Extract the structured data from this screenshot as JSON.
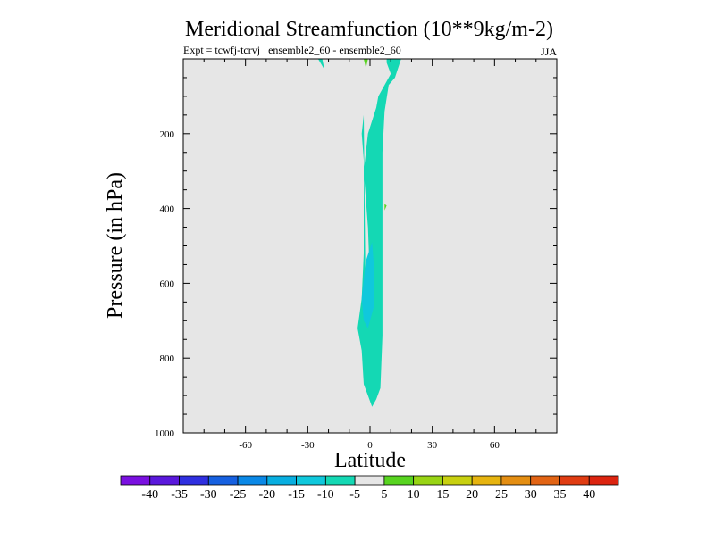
{
  "chart_data": {
    "type": "contour",
    "title": "Meridional Streamfunction (10**9kg/m-2)",
    "subtitle_left": "Expt = tcwfj-tcrvj   ensemble2_60 - ensemble2_60",
    "subtitle_right": "JJA",
    "xlabel": "Latitude",
    "ylabel": "Pressure (in hPa)",
    "xlim": [
      -90,
      90
    ],
    "ylim": [
      1000,
      0
    ],
    "x_ticks": [
      -60,
      -30,
      0,
      30,
      60
    ],
    "x_tick_labels": [
      "-60",
      "-30",
      "0",
      "30",
      "60"
    ],
    "y_ticks": [
      200,
      400,
      600,
      800,
      1000
    ],
    "y_tick_labels": [
      "200",
      "400",
      "600",
      "800",
      "1000"
    ],
    "background_color": "#e6e6e6",
    "colorbar": {
      "labels": [
        "-40",
        "-35",
        "-30",
        "-25",
        "-20",
        "-15",
        "-10",
        "-5",
        "5",
        "10",
        "15",
        "20",
        "25",
        "30",
        "35",
        "40"
      ],
      "colors": [
        "#7a10e0",
        "#5a18dc",
        "#2f2fe0",
        "#1660e0",
        "#0a88e6",
        "#08aee0",
        "#10c8dc",
        "#14d8b4",
        "#e6e6e6",
        "#58d420",
        "#98d414",
        "#c8d010",
        "#e6b410",
        "#e48e12",
        "#e26414",
        "#e03c12",
        "#dc2410"
      ]
    },
    "regions": [
      {
        "name": "neg-5-to-0-band",
        "color": "#14d8b4",
        "points": [
          [
            -2,
            720
          ],
          [
            0,
            600
          ],
          [
            -1,
            450
          ],
          [
            -3,
            300
          ],
          [
            -1,
            200
          ],
          [
            3,
            130
          ],
          [
            4,
            100
          ],
          [
            7,
            70
          ],
          [
            10,
            40
          ],
          [
            8,
            10
          ],
          [
            8,
            0
          ],
          [
            15,
            0
          ],
          [
            12,
            50
          ],
          [
            9,
            70
          ],
          [
            7,
            140
          ],
          [
            6,
            250
          ],
          [
            6,
            450
          ],
          [
            6,
            620
          ],
          [
            6,
            740
          ],
          [
            5,
            880
          ],
          [
            3,
            910
          ],
          [
            1,
            930
          ],
          [
            -1,
            900
          ],
          [
            -3,
            870
          ],
          [
            -4,
            780
          ],
          [
            -6,
            720
          ],
          [
            -4,
            640
          ],
          [
            -3,
            520
          ],
          [
            -3,
            380
          ],
          [
            -3,
            270
          ],
          [
            -4,
            200
          ],
          [
            -3,
            150
          ],
          [
            -2,
            720
          ]
        ]
      },
      {
        "name": "neg-10-to-5-core",
        "color": "#10c8dc",
        "points": [
          [
            -4,
            640
          ],
          [
            -2,
            540
          ],
          [
            1,
            490
          ],
          [
            2,
            560
          ],
          [
            2,
            660
          ],
          [
            -1,
            720
          ],
          [
            -3,
            700
          ],
          [
            -4,
            640
          ]
        ]
      },
      {
        "name": "neg-5-top-left-speck",
        "color": "#14d8b4",
        "points": [
          [
            -25,
            0
          ],
          [
            -23,
            0
          ],
          [
            -22,
            28
          ],
          [
            -25,
            0
          ]
        ]
      },
      {
        "name": "pos-5-top-speck",
        "color": "#58d420",
        "points": [
          [
            -3,
            0
          ],
          [
            -1,
            0
          ],
          [
            -2,
            25
          ],
          [
            -3,
            0
          ]
        ]
      },
      {
        "name": "pos-5-mid-speck",
        "color": "#58d420",
        "points": [
          [
            7,
            388
          ],
          [
            8,
            392
          ],
          [
            7,
            405
          ],
          [
            7,
            388
          ]
        ]
      }
    ]
  }
}
